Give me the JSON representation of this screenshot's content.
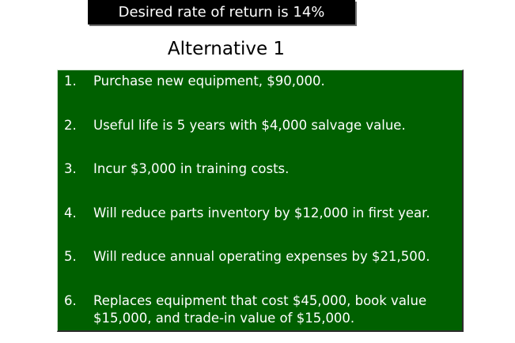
{
  "banner": {
    "text": "Desired rate of return is 14%"
  },
  "subtitle": "Alternative 1",
  "items": [
    {
      "num": "1.",
      "text": "Purchase new equipment, $90,000."
    },
    {
      "num": "2.",
      "text": "Useful life is 5 years with $4,000 salvage value."
    },
    {
      "num": "3.",
      "text": "Incur $3,000 in training costs."
    },
    {
      "num": "4.",
      "text": "Will reduce parts inventory by $12,000 in first year."
    },
    {
      "num": "5.",
      "text": "Will reduce annual operating expenses by $21,500."
    },
    {
      "num": "6.",
      "text": "Replaces equipment that cost $45,000, book value $15,000, and trade-in value of $15,000."
    }
  ],
  "colors": {
    "banner_bg": "#000000",
    "panel_bg": "#006000",
    "text_on_panel": "#ffffff"
  }
}
